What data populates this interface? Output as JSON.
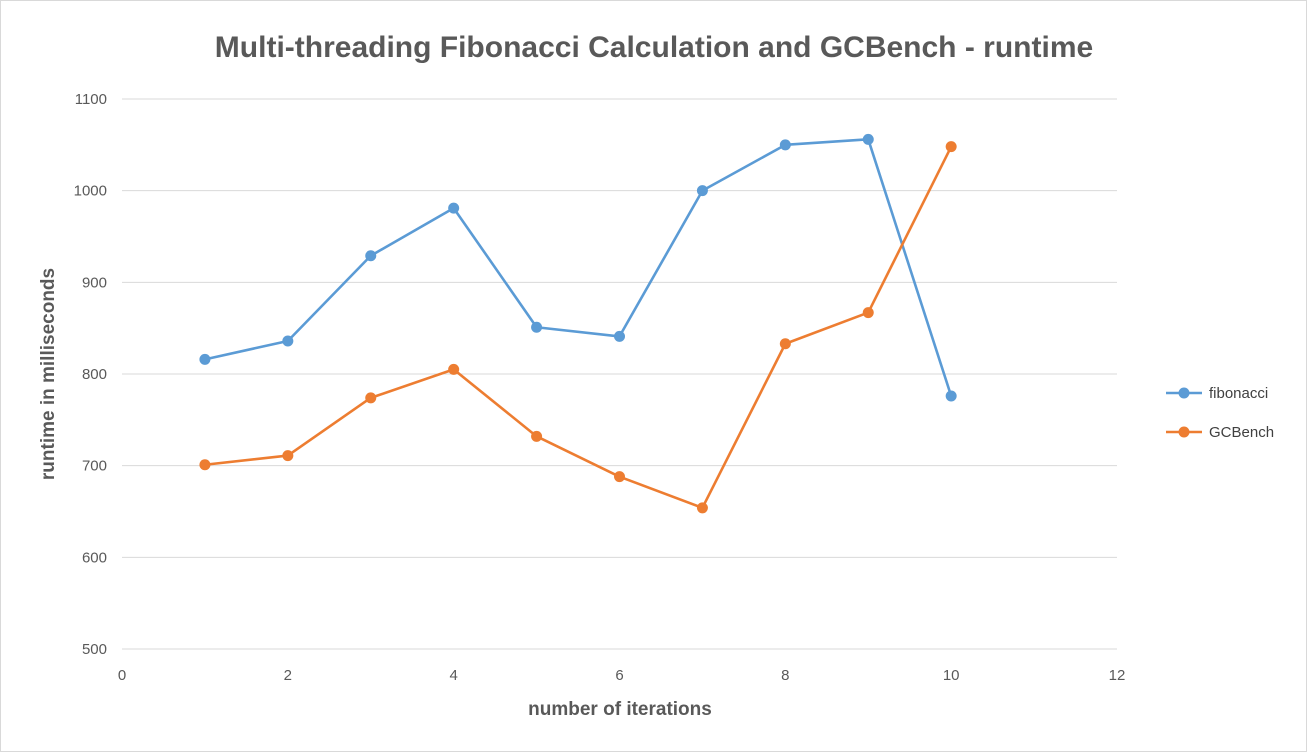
{
  "chart_data": {
    "type": "line",
    "title": "Multi-threading Fibonacci Calculation and GCBench - runtime",
    "xlabel": "number of iterations",
    "ylabel": "runtime in milliseconds",
    "xlim": [
      0,
      12
    ],
    "ylim": [
      500,
      1100
    ],
    "x_ticks": [
      0,
      2,
      4,
      6,
      8,
      10,
      12
    ],
    "y_ticks": [
      500,
      600,
      700,
      800,
      900,
      1000,
      1100
    ],
    "grid": true,
    "legend_position": "right",
    "x": [
      1,
      2,
      3,
      4,
      5,
      6,
      7,
      8,
      9,
      10
    ],
    "series": [
      {
        "name": "fibonacci",
        "color": "#5b9bd5",
        "values": [
          816,
          836,
          929,
          981,
          851,
          841,
          1000,
          1050,
          1056,
          776
        ]
      },
      {
        "name": "GCBench",
        "color": "#ed7d31",
        "values": [
          701,
          711,
          774,
          805,
          732,
          688,
          654,
          833,
          867,
          1048
        ]
      }
    ]
  }
}
